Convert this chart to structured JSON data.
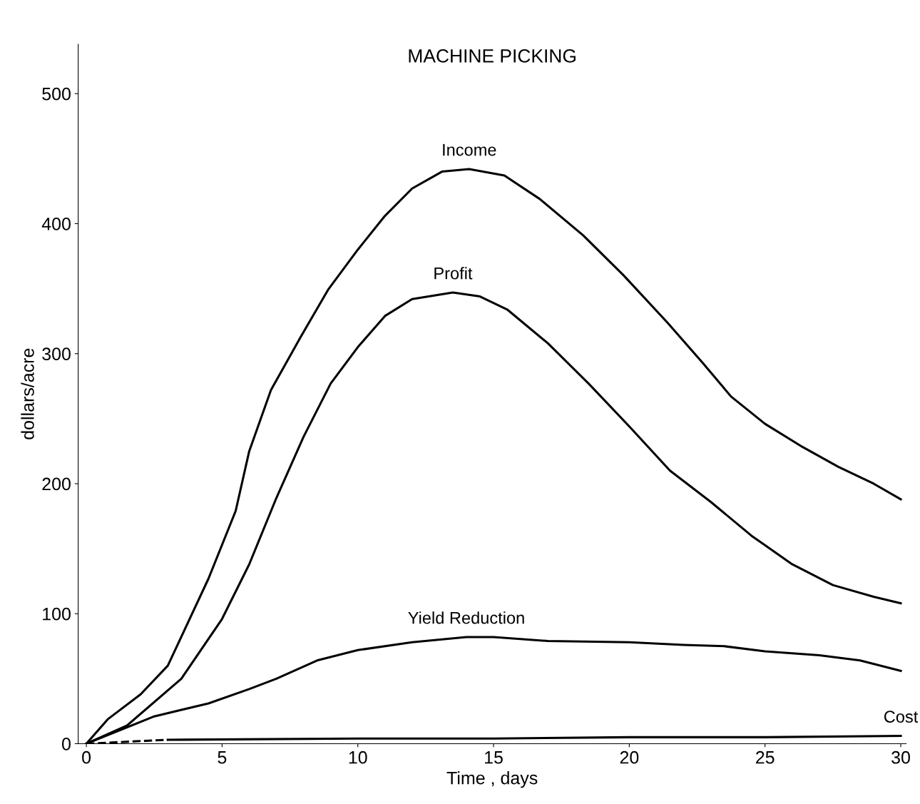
{
  "chart_data": {
    "type": "line",
    "title": "MACHINE PICKING",
    "xlabel": "Time , days",
    "ylabel": "dollars/acre",
    "xlim": [
      -0.3,
      30.2
    ],
    "ylim": [
      0,
      538
    ],
    "xticks": [
      0,
      5,
      10,
      15,
      20,
      25,
      30
    ],
    "yticks": [
      0,
      100,
      200,
      300,
      400,
      500
    ],
    "grid": false,
    "legend": false,
    "marker": "none",
    "series": [
      {
        "name": "Income",
        "color": "#000000",
        "line_style": "solid",
        "x": [
          0,
          0.8,
          2,
          3,
          4.5,
          5.5,
          6,
          6.8,
          7.9,
          8.9,
          10,
          11,
          12,
          13.1,
          14.1,
          15.4,
          16.7,
          18.3,
          19.8,
          21.4,
          22.7,
          23.75,
          25,
          26.4,
          27.7,
          29,
          30
        ],
        "values": [
          0,
          19,
          38,
          60,
          127,
          179,
          225,
          272,
          313,
          349,
          380,
          406,
          427,
          440,
          442,
          437,
          419,
          391,
          360,
          324,
          293,
          267,
          246,
          228,
          213,
          200,
          188
        ]
      },
      {
        "name": "Profit",
        "color": "#000000",
        "line_style": "solid",
        "x": [
          0,
          1.5,
          3.5,
          5,
          6,
          7,
          8,
          9,
          10,
          11,
          12,
          13.5,
          14.5,
          15.5,
          17,
          18.5,
          20,
          21.5,
          23,
          24.5,
          26,
          27.5,
          29,
          30
        ],
        "values": [
          0,
          14,
          50,
          96,
          138,
          189,
          236,
          277,
          305,
          329,
          342,
          347,
          344,
          334,
          308,
          277,
          244,
          210,
          186,
          160,
          138,
          122,
          113,
          108
        ]
      },
      {
        "name": "Yield Reduction",
        "color": "#000000",
        "line_style": "solid",
        "x": [
          0,
          2.5,
          4.5,
          6,
          7,
          8.5,
          10,
          12,
          14,
          15,
          17,
          20,
          22,
          23.5,
          25,
          27,
          28.5,
          30
        ],
        "values": [
          0,
          21,
          31,
          42,
          50,
          64,
          72,
          78,
          82,
          82,
          79,
          78,
          76,
          75,
          71,
          68,
          64,
          56
        ]
      },
      {
        "name": "Cost",
        "color": "#000000",
        "line_style": "solid",
        "x": [
          3,
          10,
          15,
          20,
          25,
          30
        ],
        "values": [
          3,
          4,
          4,
          5,
          5,
          6
        ]
      },
      {
        "color": "#000000",
        "line_style": "dashed",
        "x": [
          0,
          3
        ],
        "values": [
          0,
          3
        ]
      }
    ]
  }
}
